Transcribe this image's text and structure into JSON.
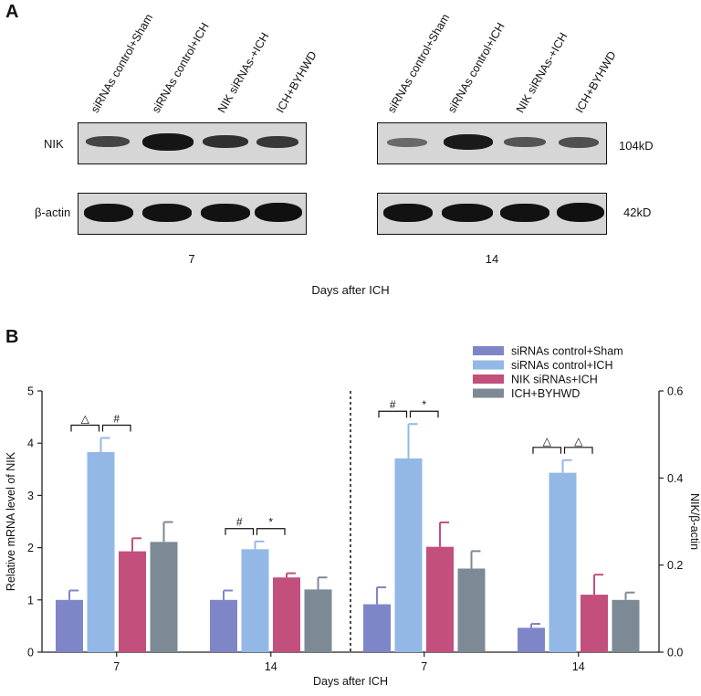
{
  "panel_a": {
    "letter": "A",
    "lanes": [
      "siRNAs control+Sham",
      "siRNAs control+ICH",
      "NIK siRNAs-+ICH",
      "ICH+BYHWD"
    ],
    "rows": [
      {
        "label": "NIK",
        "size": "104kD"
      },
      {
        "label": "β-actin",
        "size": "42kD"
      }
    ],
    "groups": [
      "7",
      "14"
    ],
    "xlabel": "Days after ICH"
  },
  "panel_b": {
    "letter": "B"
  },
  "chart_data": {
    "type": "bar",
    "xlabel": "Days after ICH",
    "ylabel_left": "Relative mRNA level of NIK",
    "ylabel_right": "NIK/β-actin",
    "ylim_left": [
      0,
      5
    ],
    "yticks_left": [
      "0",
      "1",
      "2",
      "3",
      "4",
      "5"
    ],
    "ylim_right": [
      0,
      0.6
    ],
    "yticks_right": [
      "0.0",
      "0.2",
      "0.4",
      "0.6"
    ],
    "legend": {
      "position": "top-right"
    },
    "colors": {
      "siRNAs control+Sham": "#7f86c8",
      "siRNAs control+ICH": "#93b8e6",
      "NIK siRNAs+ICH": "#c24f7c",
      "ICH+BYHWD": "#7d8995"
    },
    "series": [
      {
        "name": "siRNAs control+Sham"
      },
      {
        "name": "siRNAs control+ICH"
      },
      {
        "name": "NIK siRNAs+ICH"
      },
      {
        "name": "ICH+BYHWD"
      }
    ],
    "groups": [
      {
        "label": "7",
        "axis": "left",
        "values": [
          1.0,
          3.83,
          1.93,
          2.11
        ],
        "errors": [
          0.18,
          0.27,
          0.25,
          0.38
        ],
        "brackets": [
          {
            "from": 0,
            "to": 1,
            "symbol": "△"
          },
          {
            "from": 1,
            "to": 2,
            "symbol": "#"
          }
        ]
      },
      {
        "label": "14",
        "axis": "left",
        "values": [
          1.0,
          1.97,
          1.43,
          1.2
        ],
        "errors": [
          0.18,
          0.15,
          0.08,
          0.23
        ],
        "brackets": [
          {
            "from": 0,
            "to": 1,
            "symbol": "#"
          },
          {
            "from": 1,
            "to": 2,
            "symbol": "*"
          }
        ]
      },
      {
        "label": "7",
        "axis": "right",
        "values": [
          0.11,
          0.445,
          0.242,
          0.192
        ],
        "errors": [
          0.039,
          0.079,
          0.056,
          0.04
        ],
        "brackets": [
          {
            "from": 0,
            "to": 1,
            "symbol": "#"
          },
          {
            "from": 1,
            "to": 2,
            "symbol": "*"
          }
        ]
      },
      {
        "label": "14",
        "axis": "right",
        "values": [
          0.056,
          0.412,
          0.132,
          0.12
        ],
        "errors": [
          0.009,
          0.029,
          0.046,
          0.017
        ],
        "brackets": [
          {
            "from": 0,
            "to": 1,
            "symbol": "△"
          },
          {
            "from": 1,
            "to": 2,
            "symbol": "△"
          }
        ]
      }
    ]
  }
}
